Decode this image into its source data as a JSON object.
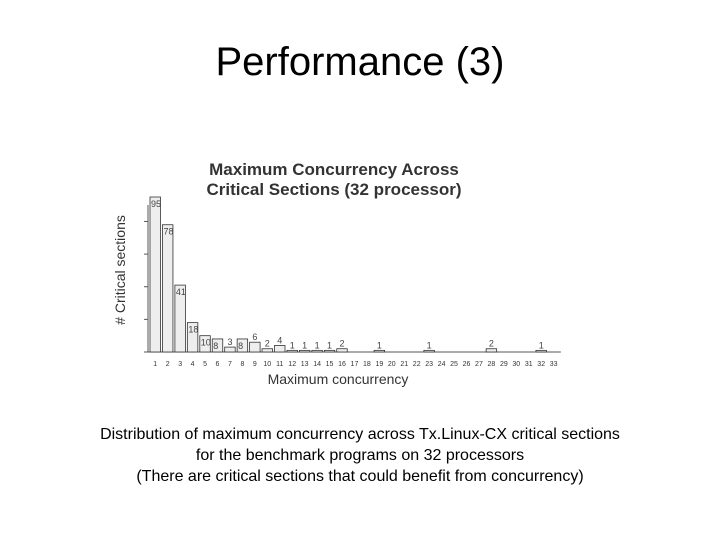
{
  "slide": {
    "title": "Performance (3)",
    "caption": [
      "Distribution of maximum concurrency across Tx.Linux-CX critical sections",
      "for the benchmark programs on 32 processors",
      "(There are critical sections that could benefit from concurrency)"
    ]
  },
  "chart_data": {
    "type": "bar",
    "title": "Maximum Concurrency Across\nCritical Sections (32 processor)",
    "xlabel": "Maximum concurrency",
    "ylabel": "# Critical sections",
    "categories": [
      "1",
      "2",
      "3",
      "4",
      "5",
      "6",
      "7",
      "8",
      "9",
      "10",
      "11",
      "12",
      "13",
      "14",
      "15",
      "16",
      "17",
      "18",
      "19",
      "20",
      "21",
      "22",
      "23",
      "24",
      "25",
      "26",
      "27",
      "28",
      "29",
      "30",
      "31",
      "32",
      "33"
    ],
    "values": [
      95,
      78,
      41,
      18,
      10,
      8,
      3,
      8,
      6,
      2,
      4,
      1,
      1,
      1,
      1,
      2,
      0,
      0,
      1,
      0,
      0,
      0,
      1,
      0,
      0,
      0,
      0,
      2,
      0,
      0,
      0,
      1,
      0
    ],
    "data_labels": [
      "95",
      "78",
      "41",
      "18",
      "10",
      "8",
      "3",
      "8",
      "6",
      "2",
      "4",
      "1",
      "1",
      "1",
      "1",
      "2",
      "",
      "",
      "1",
      "",
      "",
      "",
      "1",
      "",
      "",
      "",
      "",
      "2",
      "",
      "",
      "",
      "1",
      ""
    ],
    "ylim": [
      0,
      100
    ],
    "grid": false,
    "legend": "none",
    "colors": {
      "bar_fill": "#eeeeee",
      "bar_stroke": "#333333"
    }
  }
}
